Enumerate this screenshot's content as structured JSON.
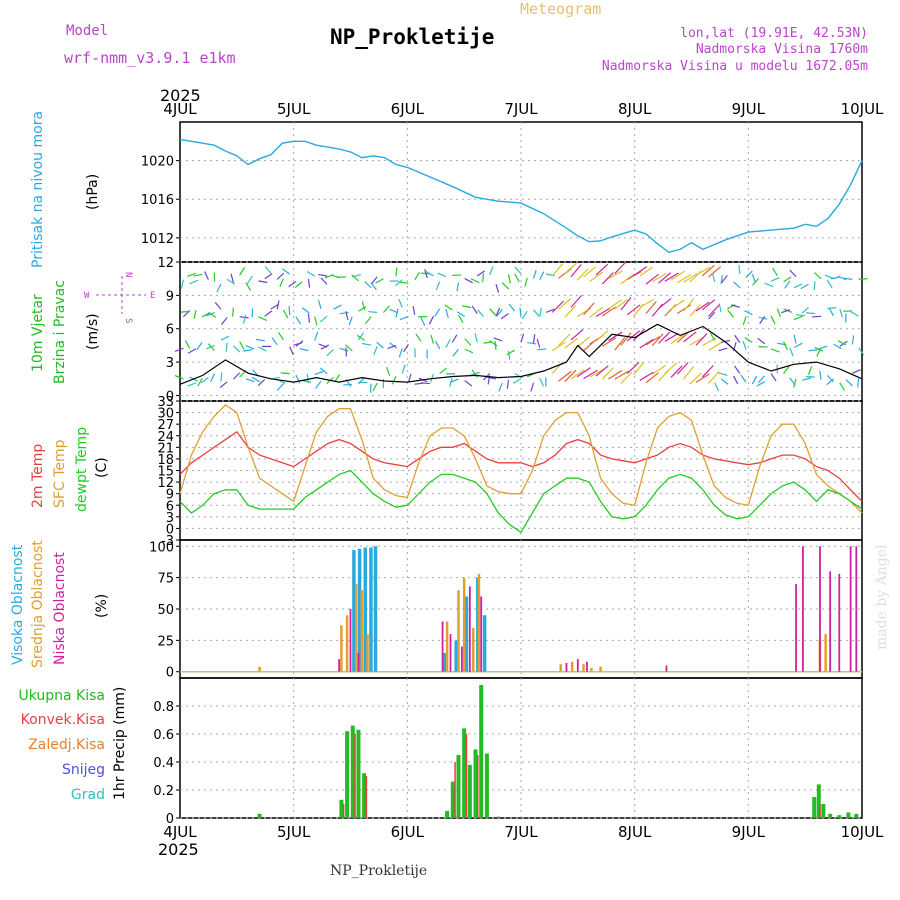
{
  "header": {
    "model_label": "Model",
    "model_name": "wrf-nmm_v3.9.1  e1km",
    "station_title": "NP_Prokletije",
    "product_title": "Meteogram",
    "coords": "lon,lat (19.91E, 42.53N)",
    "elevation": "Nadmorska Visina 1760m",
    "model_elevation": "Nadmorska Visina u modelu 1672.05m",
    "footer_station": "NP_Prokletije",
    "signature": "made by Angel"
  },
  "time_axis": {
    "year": "2025",
    "day_labels": [
      "4JUL",
      "5JUL",
      "6JUL",
      "7JUL",
      "8JUL",
      "9JUL",
      "10JUL"
    ],
    "start_day": 4,
    "end_day": 10
  },
  "colors": {
    "pressure": "#2aa8e0",
    "wind_label": "#22bb22",
    "direction_label": "#bb44cc",
    "temp2m": "#e84040",
    "sfc_temp": "#e0a030",
    "dewpoint": "#22cc22",
    "high_cloud": "#2aa8e0",
    "mid_cloud": "#e0a030",
    "low_cloud": "#d020a0",
    "precip_total": "#22bb22",
    "precip_conv": "#e84040",
    "precip_grid": "#e88030",
    "snow": "#5050e0",
    "hail": "#30c0c0"
  },
  "panels": {
    "pressure": {
      "ylabel": "Pritisak na nivou mora",
      "unit": "(hPa)"
    },
    "wind": {
      "ylabel1": "10m Vjetar",
      "ylabel2": "Brzina i Pravac",
      "unit": "(m/s)",
      "compass": {
        "w": "W",
        "e": "E",
        "n": "N",
        "s": "S"
      }
    },
    "temperature": {
      "ylabel1": "2m Temp",
      "ylabel2": "SFC Temp",
      "ylabel3": "dewpt Temp",
      "unit": "(C)"
    },
    "cloud": {
      "ylabel1": "Visoka Oblacnost",
      "ylabel2": "Srednja Oblacnost",
      "ylabel3": "Niska Oblacnost",
      "unit": "(%)"
    },
    "precip": {
      "labels": [
        "Ukupna Kisa",
        "Konvek.Kisa",
        "Zaledj.Kisa",
        "Snijeg",
        "Grad"
      ],
      "unit": "1hr Precip (mm)"
    }
  },
  "chart_data": [
    {
      "type": "line",
      "name": "pressure",
      "ylim": [
        1009.5,
        1024
      ],
      "yticks": [
        1012,
        1016,
        1020
      ],
      "x": [
        4.0,
        4.1,
        4.2,
        4.3,
        4.4,
        4.5,
        4.6,
        4.7,
        4.8,
        4.9,
        5.0,
        5.1,
        5.2,
        5.3,
        5.4,
        5.5,
        5.6,
        5.7,
        5.8,
        5.9,
        6.0,
        6.2,
        6.4,
        6.6,
        6.8,
        7.0,
        7.2,
        7.4,
        7.5,
        7.6,
        7.7,
        7.8,
        8.0,
        8.1,
        8.2,
        8.3,
        8.4,
        8.5,
        8.6,
        8.8,
        9.0,
        9.2,
        9.4,
        9.5,
        9.6,
        9.7,
        9.8,
        9.9,
        10.0
      ],
      "y": [
        1022.2,
        1022.0,
        1021.8,
        1021.6,
        1021.0,
        1020.5,
        1019.6,
        1020.2,
        1020.6,
        1021.8,
        1022.0,
        1022.0,
        1021.6,
        1021.4,
        1021.2,
        1020.9,
        1020.3,
        1020.5,
        1020.3,
        1019.6,
        1019.3,
        1018.3,
        1017.3,
        1016.2,
        1015.8,
        1015.6,
        1014.5,
        1013.0,
        1012.2,
        1011.6,
        1011.7,
        1012.1,
        1012.8,
        1012.4,
        1011.4,
        1010.5,
        1010.8,
        1011.5,
        1010.8,
        1011.8,
        1012.6,
        1012.8,
        1013.0,
        1013.4,
        1013.2,
        1014.0,
        1015.5,
        1017.5,
        1020.0
      ]
    },
    {
      "type": "line",
      "name": "10m wind speed",
      "ylim": [
        -0.5,
        12
      ],
      "yticks": [
        0,
        3,
        6,
        9,
        12
      ],
      "x": [
        4.0,
        4.2,
        4.4,
        4.6,
        4.8,
        5.0,
        5.2,
        5.4,
        5.6,
        5.8,
        6.0,
        6.2,
        6.4,
        6.6,
        6.8,
        7.0,
        7.2,
        7.4,
        7.5,
        7.6,
        7.8,
        8.0,
        8.2,
        8.4,
        8.6,
        8.8,
        9.0,
        9.2,
        9.4,
        9.6,
        9.8,
        10.0
      ],
      "y": [
        1.0,
        1.8,
        3.2,
        2.0,
        1.5,
        1.2,
        1.6,
        1.2,
        1.6,
        1.3,
        1.2,
        1.5,
        1.7,
        1.8,
        1.6,
        1.7,
        2.2,
        3.0,
        4.5,
        3.5,
        5.5,
        5.2,
        6.4,
        5.4,
        6.2,
        4.8,
        3.0,
        2.2,
        2.8,
        3.0,
        2.4,
        1.5
      ]
    },
    {
      "type": "line",
      "name": "temperatures",
      "ylim": [
        -3,
        33
      ],
      "yticks": [
        -3,
        0,
        3,
        6,
        9,
        12,
        15,
        18,
        21,
        24,
        27,
        30,
        33
      ],
      "x": [
        4.0,
        4.1,
        4.2,
        4.3,
        4.4,
        4.5,
        4.6,
        4.7,
        4.8,
        4.9,
        5.0,
        5.1,
        5.2,
        5.3,
        5.4,
        5.5,
        5.6,
        5.7,
        5.8,
        5.9,
        6.0,
        6.1,
        6.2,
        6.3,
        6.4,
        6.5,
        6.6,
        6.7,
        6.8,
        6.9,
        7.0,
        7.1,
        7.2,
        7.3,
        7.4,
        7.5,
        7.6,
        7.7,
        7.8,
        7.9,
        8.0,
        8.1,
        8.2,
        8.3,
        8.4,
        8.5,
        8.6,
        8.7,
        8.8,
        8.9,
        9.0,
        9.1,
        9.2,
        9.3,
        9.4,
        9.5,
        9.6,
        9.7,
        9.8,
        9.9,
        10.0
      ],
      "series": [
        {
          "name": "2m Temp",
          "values": [
            14,
            17,
            19,
            21,
            23,
            25,
            21,
            19,
            18,
            17,
            16,
            18,
            20,
            22,
            23,
            22,
            20,
            18,
            17,
            16.5,
            16,
            18,
            20,
            21,
            21,
            22,
            20,
            18,
            17,
            17,
            17,
            16,
            17,
            19,
            22,
            23,
            22,
            19,
            18,
            17.5,
            17,
            18,
            19,
            21,
            22,
            21,
            19,
            18,
            17.5,
            17,
            16.5,
            17,
            18,
            19,
            19,
            18,
            16,
            15,
            13,
            10,
            7
          ]
        },
        {
          "name": "SFC Temp",
          "values": [
            9,
            19,
            25,
            29,
            32,
            30,
            21,
            13,
            11,
            9,
            7,
            16,
            25,
            29,
            31,
            31,
            23,
            13,
            10,
            8.5,
            8,
            17,
            24,
            26,
            26,
            24,
            18,
            11,
            9.5,
            9,
            9,
            15,
            24,
            28,
            30,
            30,
            24,
            13,
            9,
            6.5,
            6,
            17,
            26,
            29,
            30,
            28,
            19,
            11,
            8,
            6.5,
            6,
            16,
            24,
            27,
            27,
            22,
            14,
            11,
            9,
            7,
            4
          ]
        },
        {
          "name": "dewpt Temp",
          "values": [
            7,
            4,
            6,
            9,
            10,
            10,
            6,
            5,
            5,
            5,
            5,
            8,
            10,
            12,
            14,
            15,
            12,
            9,
            7,
            5.5,
            6,
            9,
            12,
            14,
            14,
            13,
            12,
            9,
            4,
            1,
            -1,
            4,
            9,
            11,
            13,
            13,
            12,
            7,
            3,
            2.5,
            3,
            6,
            10,
            13,
            14,
            13,
            10,
            6,
            3.5,
            2.5,
            3,
            6,
            9,
            11,
            12,
            10,
            7,
            10,
            9,
            7,
            5
          ]
        }
      ]
    },
    {
      "type": "bar",
      "name": "cloud cover",
      "ylim": [
        -5,
        105
      ],
      "yticks": [
        0,
        25,
        50,
        75,
        100
      ],
      "series": [
        {
          "name": "Visoka Oblacnost",
          "x": [
            5.53,
            5.58,
            5.63,
            5.68,
            5.72,
            6.33,
            6.43,
            6.52,
            6.62,
            6.68
          ],
          "values": [
            97,
            98,
            99,
            99,
            100,
            15,
            25,
            60,
            75,
            45
          ]
        },
        {
          "name": "Srednja Oblacnost",
          "x": [
            4.7,
            5.42,
            5.47,
            5.55,
            5.6,
            5.65,
            6.35,
            6.45,
            6.5,
            6.58,
            6.63,
            7.35,
            7.45,
            7.55,
            7.62,
            7.7,
            9.63,
            9.68
          ],
          "values": [
            4,
            37,
            45,
            70,
            65,
            30,
            40,
            65,
            75,
            35,
            78,
            6,
            8,
            6,
            3,
            4,
            25,
            30
          ]
        },
        {
          "name": "Niska Oblacnost",
          "x": [
            5.4,
            5.5,
            5.57,
            6.31,
            6.38,
            6.48,
            6.55,
            6.65,
            7.4,
            7.5,
            7.58,
            8.28,
            9.42,
            9.48,
            9.63,
            9.72,
            9.8,
            9.9,
            9.95
          ],
          "values": [
            10,
            50,
            15,
            40,
            30,
            20,
            68,
            60,
            7,
            10,
            8,
            5,
            70,
            100,
            100,
            80,
            78,
            100,
            100
          ]
        }
      ]
    },
    {
      "type": "bar",
      "name": "1hr precipitation",
      "ylim": [
        0,
        1.0
      ],
      "yticks": [
        0,
        0.2,
        0.4,
        0.6,
        0.8
      ],
      "series": [
        {
          "name": "Ukupna Kisa",
          "x": [
            4.7,
            5.42,
            5.47,
            5.52,
            5.57,
            5.62,
            6.35,
            6.4,
            6.45,
            6.5,
            6.55,
            6.6,
            6.65,
            6.7,
            6.8,
            9.58,
            9.62,
            9.66,
            9.72,
            9.8,
            9.88,
            9.95
          ],
          "values": [
            0.03,
            0.13,
            0.62,
            0.66,
            0.63,
            0.32,
            0.05,
            0.26,
            0.45,
            0.64,
            0.38,
            0.49,
            0.95,
            0.46,
            0.01,
            0.15,
            0.24,
            0.1,
            0.03,
            0.02,
            0.04,
            0.03
          ]
        },
        {
          "name": "Konvek.Kisa",
          "x": [
            5.44,
            5.54,
            5.64,
            6.42,
            6.52,
            6.62,
            9.63
          ],
          "values": [
            0.1,
            0.6,
            0.3,
            0.4,
            0.6,
            0.45,
            0.1
          ]
        }
      ]
    }
  ]
}
